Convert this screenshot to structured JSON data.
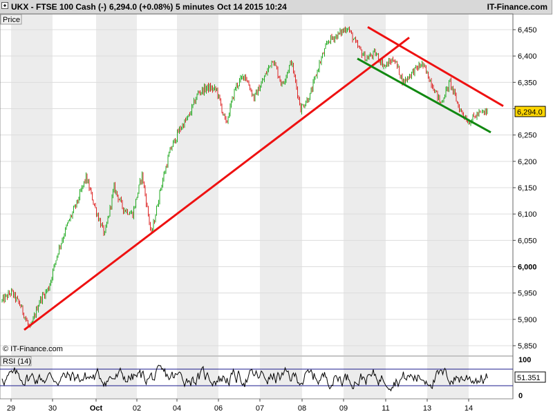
{
  "header": {
    "symbol": "UKX - FTSE 100 Cash (-)",
    "quote": "6,294.0 (+0.08%)",
    "interval": "5 minutes",
    "datetime": "Oct 14 2015 10:24",
    "brand": "IT-Finance.com"
  },
  "price_panel": {
    "label": "Price",
    "copyright": "© IT-Finance.com",
    "last_value_tag": "6,294.0",
    "last_value_color": "#ffd700"
  },
  "rsi_panel": {
    "label": "RSI (14)",
    "last_value_tag": "51.351",
    "y_ticks": [
      "100",
      "0"
    ]
  },
  "colors": {
    "up_candle": "#22aa22",
    "down_candle": "#dd2222",
    "trend_red": "#ee1111",
    "trend_green": "#118811",
    "band_shade": "#ececec",
    "rsi_line": "#000000",
    "rsi_bounds": "#1a1a8c"
  },
  "chart_data": [
    {
      "type": "candlestick",
      "title": "UKX - FTSE 100 Cash (-)",
      "ylabel": "Price",
      "ylim": [
        5840,
        6475
      ],
      "y_ticks": [
        "6,450",
        "6,400",
        "6,350",
        "6,300",
        "6,250",
        "6,200",
        "6,150",
        "6,100",
        "6,050",
        "6,000",
        "5,950",
        "5,900",
        "5,850"
      ],
      "x_tick_labels": [
        "29",
        "30",
        "Oct",
        "02",
        "04",
        "06",
        "07",
        "08",
        "09",
        "11",
        "13",
        "14"
      ],
      "grid": "alternating vertical bands",
      "close_path": [
        5935,
        5952,
        5925,
        5880,
        5935,
        5960,
        6030,
        6080,
        6120,
        6170,
        6110,
        6060,
        6150,
        6110,
        6100,
        6175,
        6060,
        6150,
        6220,
        6260,
        6285,
        6330,
        6340,
        6335,
        6270,
        6340,
        6365,
        6320,
        6355,
        6395,
        6345,
        6390,
        6300,
        6325,
        6385,
        6430,
        6440,
        6455,
        6420,
        6395,
        6405,
        6380,
        6395,
        6350,
        6370,
        6385,
        6350,
        6310,
        6350,
        6300,
        6275,
        6290,
        6294
      ],
      "last": 6294.0,
      "trendlines": [
        {
          "name": "rising support",
          "color": "red",
          "from": [
            "29",
            5880
          ],
          "to": [
            "11",
            6430
          ]
        },
        {
          "name": "falling resistance",
          "color": "red",
          "from": [
            "09",
            6455
          ],
          "to": [
            "14",
            6305
          ]
        },
        {
          "name": "falling support",
          "color": "green",
          "from": [
            "09",
            6395
          ],
          "to": [
            "14",
            6255
          ]
        }
      ]
    },
    {
      "type": "line",
      "title": "RSI (14)",
      "ylim": [
        0,
        100
      ],
      "y_ticks": [
        0,
        100
      ],
      "upper_band": 70,
      "lower_band": 30,
      "last": 51.351
    }
  ]
}
